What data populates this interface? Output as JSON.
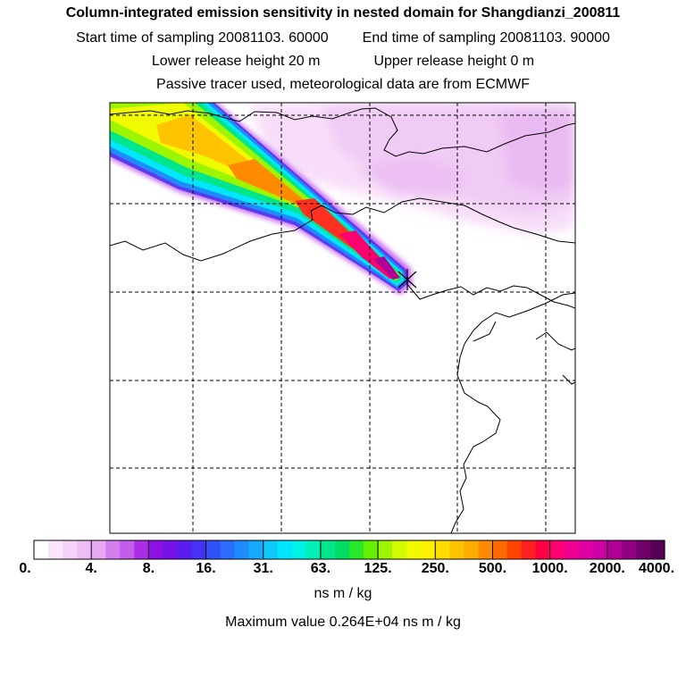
{
  "header": {
    "title": "Column-integrated emission sensitivity in nested domain for Shangdianzi_200811",
    "start_label": "Start time of sampling 20081103. 60000",
    "end_label": "End time of sampling 20081103. 90000",
    "lower_label": "Lower release height   20 m",
    "upper_label": "Upper release height    0 m",
    "info": "Passive tracer used, meteorological data are from ECMWF"
  },
  "map": {
    "release_marker": "x-cross-icon",
    "land_color": "#ffffff",
    "border_color": "#000000"
  },
  "colorbar": {
    "labels": [
      "0.",
      "4.",
      "8.",
      "16.",
      "31.",
      "63.",
      "125.",
      "250.",
      "500.",
      "1000.",
      "2000.",
      "4000."
    ],
    "colors": [
      "#ffffff",
      "#fbe6fb",
      "#f5d2f8",
      "#efbdf6",
      "#e9a8f4",
      "#d57ef0",
      "#c45cec",
      "#ad2ce8",
      "#8f10e6",
      "#7412e8",
      "#5a1cee",
      "#4632f4",
      "#3050fa",
      "#2a6dfc",
      "#1f8cfc",
      "#16aafc",
      "#0cc8fc",
      "#00e6fc",
      "#00f2e6",
      "#00f0b4",
      "#00e68c",
      "#00dc64",
      "#28e628",
      "#64f000",
      "#9ef500",
      "#d2fa00",
      "#f0fa00",
      "#fff000",
      "#ffdc00",
      "#ffc400",
      "#ffac00",
      "#ff8c00",
      "#ff6a00",
      "#ff4400",
      "#ff2020",
      "#ff0044",
      "#ff0070",
      "#f00090",
      "#e000a4",
      "#cc00a6",
      "#b00096",
      "#900080",
      "#70006a",
      "#580058"
    ],
    "units": "ns m / kg",
    "max_value": "Maximum value  0.264E+04 ns m / kg"
  }
}
